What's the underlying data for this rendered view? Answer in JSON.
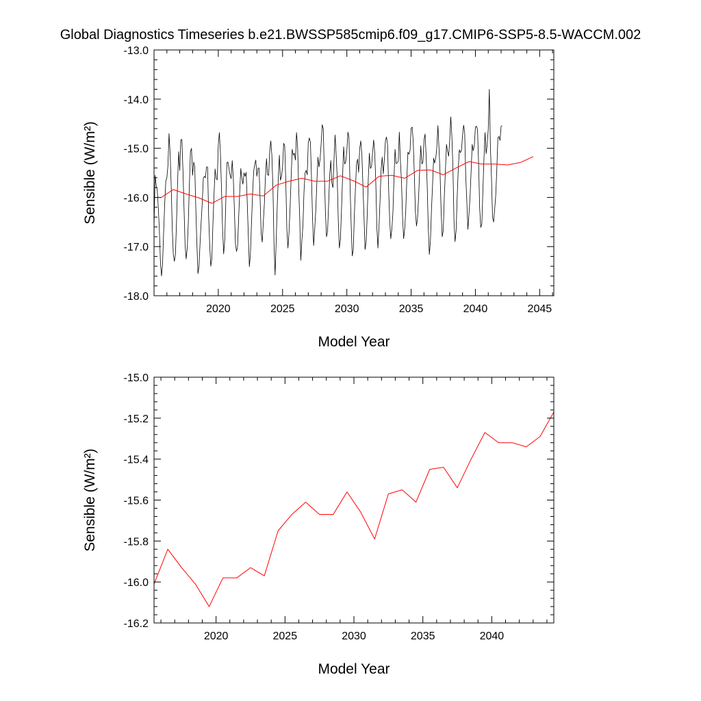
{
  "title": "Global Diagnostics Timeseries b.e21.BWSSP585cmip6.f09_g17.CMIP6-SSP5-8.5-WACCM.002",
  "chart_data": [
    {
      "type": "line",
      "ylabel": "Sensible (W/m²)",
      "xlabel": "Model Year",
      "xlim": [
        2015,
        2046.1
      ],
      "ylim": [
        -18.0,
        -13.0
      ],
      "xticks": [
        2020,
        2025,
        2030,
        2035,
        2040,
        2045
      ],
      "yticks": [
        -18.0,
        -17.0,
        -16.0,
        -15.0,
        -14.0,
        -13.0
      ],
      "ytick_labels": [
        "-18.0",
        "-17.0",
        "-16.0",
        "-15.0",
        "-14.0",
        "-13.0"
      ],
      "series": [
        {
          "color": "#000000",
          "start_year": 2015,
          "step": 0.0833333,
          "annual_min": [
            -17.6,
            -17.3,
            -17.25,
            -17.55,
            -17.4,
            -17.15,
            -17.0,
            -17.35,
            -17.0,
            -17.6,
            -17.1,
            -17.35,
            -17.0,
            -17.0,
            -16.85,
            -17.2,
            -17.25,
            -16.9,
            -16.9,
            -16.85,
            -16.7,
            -16.5,
            -17.2,
            -16.75,
            -17.15,
            -16.75,
            -16.9,
            -16.6,
            -16.6,
            -16.6,
            -16.5
          ],
          "annual_max": [
            -15.45,
            -14.7,
            -14.85,
            -15.25,
            -15.3,
            -14.65,
            -15.2,
            -15.3,
            -15.0,
            -14.85,
            -14.9,
            -14.7,
            -14.55,
            -14.75,
            -15.05,
            -14.45,
            -14.8,
            -14.75,
            -14.65,
            -14.65,
            -14.5,
            -14.65,
            -14.65,
            -14.45,
            -14.45,
            -14.5,
            -14.4,
            -14.35,
            -14.3,
            -13.8,
            -14.5
          ],
          "values": [
            -16.62,
            -15.55,
            -15.75,
            -15.85,
            -16.21,
            -16.67,
            -17.33,
            -17.6,
            -17.33,
            -16.69,
            -16.11,
            -15.67,
            -15.6,
            -15.35,
            -14.7,
            -15.09,
            -15.74,
            -16.61,
            -17.16,
            -17.3,
            -17.15,
            -16.5,
            -15.68,
            -15.07,
            -15.45,
            -14.83,
            -14.82,
            -15.44,
            -16.22,
            -16.97,
            -17.25,
            -17.03,
            -16.51,
            -15.75,
            -15.07,
            -15.0,
            -15.55,
            -15.28,
            -15.37,
            -16.21,
            -16.94,
            -17.55,
            -17.4,
            -16.92,
            -16.5,
            -16.12,
            -15.61,
            -15.57,
            -15.6,
            -15.38,
            -15.38,
            -16.39,
            -16.98,
            -17.4,
            -17.24,
            -16.52,
            -15.95,
            -15.42,
            -15.62,
            -15.64,
            -14.93,
            -14.68,
            -15.12,
            -15.84,
            -16.64,
            -17.15,
            -16.87,
            -16.09,
            -15.29,
            -15.28,
            -15.42,
            -15.54,
            -15.62,
            -15.25,
            -15.6,
            -16.23,
            -16.95,
            -17.1,
            -17.0,
            -16.42,
            -15.88,
            -15.41,
            -15.62,
            -15.73,
            -15.5,
            -15.57,
            -15.49,
            -16.09,
            -16.76,
            -17.41,
            -17.15,
            -16.52,
            -15.93,
            -15.47,
            -15.33,
            -15.24,
            -15.57,
            -15.41,
            -15.4,
            -16.01,
            -16.73,
            -16.91,
            -16.51,
            -16.13,
            -15.58,
            -15.21,
            -15.54,
            -15.55,
            -15.06,
            -14.85,
            -15.14,
            -15.8,
            -16.94,
            -17.58,
            -16.91,
            -16.18,
            -15.61,
            -15.14,
            -15.65,
            -15.57,
            -15.38,
            -14.9,
            -14.95,
            -15.67,
            -16.65,
            -17.03,
            -16.71,
            -16.21,
            -15.59,
            -15.02,
            -15.14,
            -15.1,
            -15.24,
            -14.68,
            -14.95,
            -15.78,
            -16.42,
            -17.28,
            -16.88,
            -16.57,
            -15.88,
            -15.5,
            -15.45,
            -15.54,
            -14.88,
            -14.79,
            -14.88,
            -15.61,
            -16.45,
            -16.98,
            -16.64,
            -16.26,
            -15.69,
            -15.18,
            -15.38,
            -15.22,
            -14.91,
            -14.52,
            -14.6,
            -15.52,
            -16.31,
            -16.8,
            -16.69,
            -16.14,
            -15.53,
            -15.25,
            -15.71,
            -15.8,
            -15.24,
            -14.73,
            -15.12,
            -15.59,
            -16.47,
            -17.03,
            -16.86,
            -16.25,
            -15.59,
            -14.97,
            -15.32,
            -15.27,
            -15.05,
            -14.67,
            -14.79,
            -15.77,
            -16.54,
            -17.19,
            -17.07,
            -16.36,
            -15.82,
            -15.33,
            -15.22,
            -15.49,
            -15.0,
            -14.85,
            -15.12,
            -15.75,
            -16.39,
            -17.06,
            -16.9,
            -16.38,
            -15.63,
            -15.1,
            -15.41,
            -15.37,
            -15.1,
            -14.83,
            -15.08,
            -15.67,
            -16.6,
            -17.03,
            -16.59,
            -16.06,
            -15.43,
            -15.18,
            -15.52,
            -15.23,
            -14.85,
            -14.77,
            -14.93,
            -15.81,
            -16.47,
            -16.84,
            -16.64,
            -16.31,
            -15.61,
            -15.02,
            -15.31,
            -15.3,
            -15.26,
            -14.67,
            -15.26,
            -15.67,
            -16.39,
            -16.84,
            -16.64,
            -16.26,
            -15.62,
            -15.08,
            -15.12,
            -15.04,
            -14.59,
            -14.57,
            -14.87,
            -15.54,
            -16.29,
            -16.58,
            -16.42,
            -15.99,
            -15.43,
            -14.95,
            -15.32,
            -15.28,
            -14.84,
            -14.71,
            -15.14,
            -15.76,
            -16.6,
            -17.16,
            -16.9,
            -16.25,
            -15.75,
            -15.2,
            -15.3,
            -15.2,
            -14.98,
            -14.54,
            -14.99,
            -15.49,
            -16.28,
            -16.8,
            -16.68,
            -15.97,
            -15.47,
            -14.92,
            -15.06,
            -15.16,
            -14.85,
            -14.36,
            -14.74,
            -15.38,
            -16.47,
            -16.9,
            -16.67,
            -15.98,
            -15.42,
            -15.03,
            -15.09,
            -15.04,
            -14.74,
            -14.53,
            -14.68,
            -15.58,
            -16.08,
            -16.65,
            -16.34,
            -15.99,
            -15.47,
            -14.92,
            -15.05,
            -14.94,
            -14.57,
            -14.55,
            -14.62,
            -15.32,
            -16.22,
            -16.61,
            -16.54,
            -15.86,
            -15.2,
            -14.68,
            -15.11,
            -14.93,
            -14.61,
            -13.8,
            -14.96,
            -15.59,
            -16.41,
            -16.5,
            -16.24,
            -15.95,
            -15.42,
            -14.79,
            -14.76,
            -14.84,
            -14.55,
            -14.54
          ]
        },
        {
          "color": "#ff0000",
          "x": [
            2015.5,
            2016.5,
            2017.5,
            2018.5,
            2019.5,
            2020.5,
            2021.5,
            2022.5,
            2023.5,
            2024.5,
            2025.5,
            2026.5,
            2027.5,
            2028.5,
            2029.5,
            2030.5,
            2031.5,
            2032.5,
            2033.5,
            2034.5,
            2035.5,
            2036.5,
            2037.5,
            2038.5,
            2039.5,
            2040.5,
            2041.5,
            2042.5,
            2043.5,
            2044.5
          ],
          "values": [
            -16.01,
            -15.84,
            -15.93,
            -16.01,
            -16.12,
            -15.98,
            -15.98,
            -15.93,
            -15.97,
            -15.75,
            -15.67,
            -15.61,
            -15.67,
            -15.67,
            -15.56,
            -15.66,
            -15.79,
            -15.57,
            -15.55,
            -15.61,
            -15.45,
            -15.44,
            -15.54,
            -15.4,
            -15.27,
            -15.32,
            -15.32,
            -15.34,
            -15.29,
            -15.17
          ]
        }
      ]
    },
    {
      "type": "line",
      "ylabel": "Sensible (W/m²)",
      "xlabel": "Model Year",
      "xlim": [
        2015.5,
        2044.5
      ],
      "ylim": [
        -16.2,
        -15.0
      ],
      "xticks": [
        2020,
        2025,
        2030,
        2035,
        2040
      ],
      "yticks": [
        -16.2,
        -16.0,
        -15.8,
        -15.6,
        -15.4,
        -15.2,
        -15.0
      ],
      "ytick_labels": [
        "-16.2",
        "-16.0",
        "-15.8",
        "-15.6",
        "-15.4",
        "-15.2",
        "-15.0"
      ],
      "series": [
        {
          "color": "#ff0000",
          "x": [
            2015.5,
            2016.5,
            2017.5,
            2018.5,
            2019.5,
            2020.5,
            2021.5,
            2022.5,
            2023.5,
            2024.5,
            2025.5,
            2026.5,
            2027.5,
            2028.5,
            2029.5,
            2030.5,
            2031.5,
            2032.5,
            2033.5,
            2034.5,
            2035.5,
            2036.5,
            2037.5,
            2038.5,
            2039.5,
            2040.5,
            2041.5,
            2042.5,
            2043.5,
            2044.5
          ],
          "values": [
            -16.01,
            -15.84,
            -15.93,
            -16.01,
            -16.12,
            -15.98,
            -15.98,
            -15.93,
            -15.97,
            -15.75,
            -15.67,
            -15.61,
            -15.67,
            -15.67,
            -15.56,
            -15.66,
            -15.79,
            -15.57,
            -15.55,
            -15.61,
            -15.45,
            -15.44,
            -15.54,
            -15.4,
            -15.27,
            -15.32,
            -15.32,
            -15.34,
            -15.29,
            -15.17
          ]
        }
      ]
    }
  ]
}
